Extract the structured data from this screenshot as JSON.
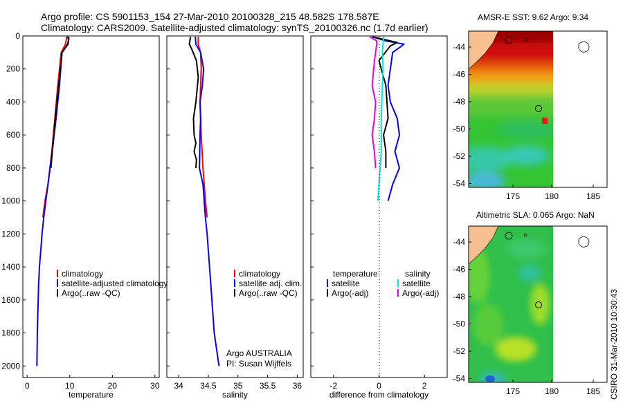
{
  "header": {
    "line1": "Argo profile: CS 5901153_154 27-Mar-2010 20100328_215 48.582S 178.587E",
    "line2": "Climatology: CARS2009. Satellite-adjusted climatology: synTS_20100326.nc (1.7d earlier)"
  },
  "maps": {
    "sst_title": "AMSR-E SST: 9.62 Argo: 9.34",
    "sla_title": "Altimetric SLA: 0.065 Argo: NaN",
    "xticks": [
      "175",
      "180",
      "185"
    ],
    "yticks": [
      "-44",
      "-46",
      "-48",
      "-50",
      "-52",
      "-54"
    ]
  },
  "credit": "CSIRO 31-Mar-2010 10:30:43",
  "colors": {
    "climatology": "#ff0000",
    "satellite": "#0000ff",
    "argo": "#000000",
    "salinity_satellite": "#00e5e5",
    "salinity_argo": "#e600e6",
    "land": "#f8c090"
  },
  "chart_data": [
    {
      "type": "line",
      "name": "temperature",
      "xlabel": "temperature",
      "ylabel": "",
      "xlim": [
        -1,
        31
      ],
      "ylim": [
        2070,
        0
      ],
      "xticks": [
        0,
        10,
        20,
        30
      ],
      "yticks": [
        0,
        200,
        400,
        600,
        800,
        1000,
        1200,
        1400,
        1600,
        1800,
        2000
      ],
      "legend": [
        "climatology",
        "satellite-adjusted climatology",
        "Argo(..raw -QC)"
      ],
      "series": [
        {
          "name": "climatology",
          "color": "#ff0000",
          "x": [
            9.3,
            9.0,
            8.0,
            7.2,
            6.5,
            5.8,
            4.9,
            4.2,
            3.7
          ],
          "y": [
            5,
            50,
            100,
            300,
            500,
            700,
            900,
            1000,
            1100
          ]
        },
        {
          "name": "satellite-adjusted climatology",
          "color": "#0000ff",
          "x": [
            9.8,
            9.6,
            8.2,
            7.6,
            6.8,
            5.9,
            4.9,
            4.4,
            3.9,
            3.5,
            3.2,
            2.9,
            2.7,
            2.6,
            2.4,
            2.3
          ],
          "y": [
            5,
            50,
            100,
            300,
            500,
            700,
            900,
            1000,
            1100,
            1200,
            1300,
            1400,
            1500,
            1600,
            1800,
            2000
          ]
        },
        {
          "name": "Argo(..raw -QC)",
          "color": "#000000",
          "x": [
            9.4,
            9.8,
            9.5,
            8.2,
            7.4,
            6.6,
            5.9,
            5.6
          ],
          "y": [
            5,
            20,
            50,
            100,
            300,
            500,
            700,
            800
          ]
        }
      ]
    },
    {
      "type": "line",
      "name": "salinity",
      "xlabel": "salinity",
      "annotation": [
        "Argo AUSTRALIA",
        "PI: Susan Wijffels"
      ],
      "xlim": [
        33.8,
        36.1
      ],
      "ylim": [
        2070,
        0
      ],
      "xticks": [
        34,
        34.5,
        35,
        35.5,
        36
      ],
      "legend": [
        "climatology",
        "satellite adj. clim.",
        "Argo(..raw -QC)"
      ],
      "series": [
        {
          "name": "climatology",
          "color": "#ff0000",
          "x": [
            34.33,
            34.33,
            34.37,
            34.38,
            34.37,
            34.36,
            34.38,
            34.41,
            34.43,
            34.45,
            34.48
          ],
          "y": [
            5,
            50,
            100,
            200,
            300,
            400,
            600,
            800,
            900,
            1000,
            1100
          ]
        },
        {
          "name": "satellite adj. clim.",
          "color": "#0000ff",
          "x": [
            34.28,
            34.29,
            34.37,
            34.42,
            34.4,
            34.36,
            34.37,
            34.36,
            34.35,
            34.41,
            34.43,
            34.45,
            34.48,
            34.52,
            34.56,
            34.6,
            34.64,
            34.68
          ],
          "y": [
            5,
            50,
            100,
            200,
            300,
            400,
            500,
            600,
            800,
            900,
            1000,
            1100,
            1200,
            1400,
            1600,
            1800,
            1900,
            2000
          ]
        },
        {
          "name": "Argo(..raw -QC)",
          "color": "#000000",
          "x": [
            34.2,
            34.18,
            34.22,
            34.3,
            34.33,
            34.29,
            34.25,
            34.26,
            34.29,
            34.26,
            34.3,
            34.29
          ],
          "y": [
            5,
            50,
            80,
            150,
            250,
            400,
            500,
            600,
            650,
            700,
            750,
            800
          ]
        }
      ]
    },
    {
      "type": "line",
      "name": "difference",
      "xlabel": "difference from climatology",
      "xlim": [
        -3,
        3
      ],
      "ylim": [
        2070,
        0
      ],
      "xticks": [
        -2,
        0,
        2
      ],
      "legend_left": [
        "temperature",
        "satellite",
        "Argo(-adj)"
      ],
      "legend_right": [
        "salinity",
        "satellite",
        "Argo(-adj)"
      ],
      "series": [
        {
          "name": "temperature satellite",
          "color": "#0000ff",
          "x": [
            -0.3,
            0.3,
            1.1,
            0.6,
            0.4,
            0.5,
            0.8,
            0.9,
            0.7,
            0.8,
            0.9,
            0.6,
            0.4
          ],
          "y": [
            5,
            30,
            50,
            100,
            300,
            400,
            500,
            600,
            700,
            750,
            800,
            900,
            1000
          ]
        },
        {
          "name": "temperature Argo(-adj)",
          "color": "#000000",
          "x": [
            -0.3,
            0.2,
            0.8,
            0.5,
            0.0,
            0.3,
            0.4,
            0.2,
            0.3,
            0.3
          ],
          "y": [
            5,
            20,
            40,
            60,
            150,
            300,
            500,
            600,
            700,
            800
          ]
        },
        {
          "name": "salinity satellite",
          "color": "#00e5e5",
          "x": [
            0.2,
            0.15,
            0.18,
            0.15,
            0.1,
            0.1,
            0.05,
            0.0,
            -0.05
          ],
          "y": [
            5,
            100,
            200,
            300,
            500,
            700,
            800,
            900,
            1000
          ]
        },
        {
          "name": "salinity Argo(-adj)",
          "color": "#e600e6",
          "x": [
            -0.4,
            -0.1,
            -0.1,
            -0.15,
            -0.2,
            -0.3,
            -0.15,
            -0.2,
            -0.3,
            -0.2,
            -0.15
          ],
          "y": [
            5,
            30,
            50,
            100,
            150,
            300,
            400,
            500,
            600,
            700,
            800
          ]
        }
      ]
    }
  ]
}
